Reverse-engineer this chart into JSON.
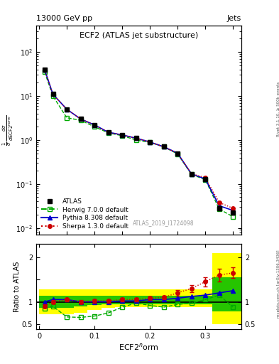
{
  "title_top": "13000 GeV pp",
  "title_right": "Jets",
  "main_title": "ECF2 (ATLAS jet substructure)",
  "xlabel": "ECF2$^{\\mathrm{n}}$orm",
  "ylabel_main": "$\\frac{1}{\\sigma}\\,\\frac{d\\sigma}{d\\mathrm{ECF2}^{\\mathrm{norm}}}$",
  "ylabel_ratio": "Ratio to ATLAS",
  "watermark": "ATLAS_2019_I1724098",
  "right_label_top": "Rivet 3.1.10, ≥ 500k events",
  "right_label_bot": "mcplots.cern.ch [arXiv:1306.3436]",
  "x_vals": [
    0.01,
    0.025,
    0.05,
    0.075,
    0.1,
    0.125,
    0.15,
    0.175,
    0.2,
    0.225,
    0.25,
    0.275,
    0.3,
    0.325,
    0.35
  ],
  "atlas_y": [
    40,
    11.0,
    5.0,
    3.0,
    2.2,
    1.5,
    1.3,
    1.1,
    0.9,
    0.7,
    0.5,
    0.17,
    0.13,
    0.028,
    0.022
  ],
  "atlas_yerr": [
    2.0,
    0.5,
    0.25,
    0.15,
    0.1,
    0.07,
    0.06,
    0.05,
    0.04,
    0.03,
    0.025,
    0.01,
    0.008,
    0.003,
    0.002
  ],
  "herwig_y": [
    35,
    10.0,
    3.2,
    2.8,
    2.0,
    1.45,
    1.25,
    1.0,
    0.88,
    0.7,
    0.48,
    0.165,
    0.125,
    0.027,
    0.018
  ],
  "herwig_ratio": [
    0.85,
    0.9,
    0.66,
    0.65,
    0.68,
    0.75,
    0.88,
    0.97,
    0.92,
    0.88,
    0.94,
    0.97,
    1.05,
    1.15,
    0.88
  ],
  "pythia_y": [
    40,
    11.0,
    5.0,
    3.0,
    2.2,
    1.5,
    1.3,
    1.1,
    0.9,
    0.7,
    0.5,
    0.17,
    0.13,
    0.032,
    0.025
  ],
  "pythia_ratio": [
    1.0,
    1.05,
    1.05,
    1.0,
    1.0,
    1.0,
    1.02,
    1.02,
    1.05,
    1.05,
    1.08,
    1.12,
    1.15,
    1.2,
    1.25
  ],
  "sherpa_y": [
    40,
    11.0,
    5.0,
    3.0,
    2.2,
    1.5,
    1.3,
    1.1,
    0.9,
    0.7,
    0.5,
    0.17,
    0.14,
    0.038,
    0.028
  ],
  "sherpa_ratio": [
    0.9,
    1.0,
    1.05,
    1.0,
    1.02,
    1.02,
    1.05,
    1.05,
    1.08,
    1.1,
    1.2,
    1.3,
    1.45,
    1.6,
    1.65
  ],
  "x_edges": [
    0.0,
    0.0175,
    0.0375,
    0.0625,
    0.0875,
    0.1125,
    0.1375,
    0.1625,
    0.1875,
    0.2125,
    0.2375,
    0.2625,
    0.2875,
    0.3125,
    0.3375,
    0.365
  ],
  "band_yellow_lo": [
    0.72,
    0.72,
    0.72,
    0.76,
    0.82,
    0.86,
    0.88,
    0.88,
    0.88,
    0.88,
    0.88,
    0.88,
    0.88,
    0.5,
    0.5
  ],
  "band_yellow_hi": [
    1.28,
    1.28,
    1.28,
    1.28,
    1.28,
    1.28,
    1.28,
    1.28,
    1.28,
    1.28,
    1.28,
    1.28,
    1.28,
    2.1,
    2.1
  ],
  "band_green_lo": [
    0.87,
    0.87,
    0.87,
    0.9,
    0.93,
    0.95,
    0.95,
    0.95,
    0.95,
    0.95,
    0.95,
    0.95,
    0.95,
    0.78,
    0.78
  ],
  "band_green_hi": [
    1.13,
    1.13,
    1.13,
    1.13,
    1.13,
    1.13,
    1.13,
    1.13,
    1.13,
    1.13,
    1.13,
    1.13,
    1.13,
    1.55,
    1.55
  ],
  "colors": {
    "atlas": "#000000",
    "herwig": "#00aa00",
    "pythia": "#0000cc",
    "sherpa": "#cc0000",
    "band_yellow": "#ffff00",
    "band_green": "#00bb00"
  },
  "xlim": [
    -0.005,
    0.365
  ],
  "ylim_main": [
    0.007,
    400
  ],
  "ylim_ratio": [
    0.38,
    2.3
  ]
}
